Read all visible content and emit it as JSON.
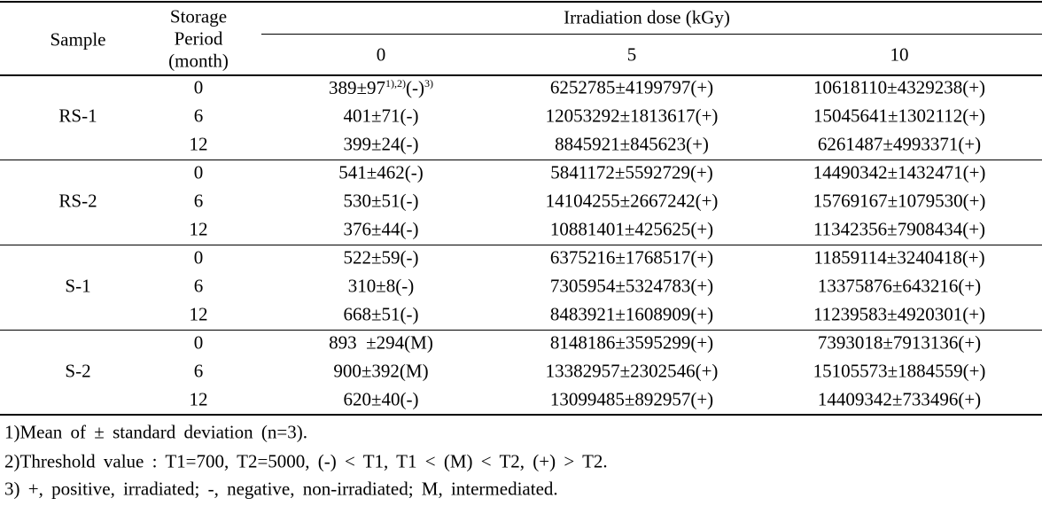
{
  "table": {
    "header": {
      "sample": "Sample",
      "period": [
        "Storage",
        "Period",
        "(month)"
      ],
      "dose": "Irradiation dose (kGy)",
      "doses": [
        "0",
        "5",
        "10"
      ]
    },
    "groups": [
      {
        "sample": "RS-1",
        "rows": [
          {
            "period": "0",
            "cells": [
              {
                "parts": [
                  "389±97",
                  "1),2)",
                  "(-)",
                  "3)"
                ]
              },
              "6252785±4199797(+)",
              "10618110±4329238(+)"
            ]
          },
          {
            "period": "6",
            "cells": [
              "401±71(-)",
              "12053292±1813617(+)",
              "15045641±1302112(+)"
            ]
          },
          {
            "period": "12",
            "cells": [
              "399±24(-)",
              "8845921±845623(+)",
              "6261487±4993371(+)"
            ]
          }
        ]
      },
      {
        "sample": "RS-2",
        "rows": [
          {
            "period": "0",
            "cells": [
              "541±462(-)",
              "5841172±5592729(+)",
              "14490342±1432471(+)"
            ]
          },
          {
            "period": "6",
            "cells": [
              "530±51(-)",
              "14104255±2667242(+)",
              "15769167±1079530(+)"
            ]
          },
          {
            "period": "12",
            "cells": [
              "376±44(-)",
              "10881401±425625(+)",
              "11342356±7908434(+)"
            ]
          }
        ]
      },
      {
        "sample": "S-1",
        "rows": [
          {
            "period": "0",
            "cells": [
              "522±59(-)",
              "6375216±1768517(+)",
              "11859114±3240418(+)"
            ]
          },
          {
            "period": "6",
            "cells": [
              "310±8(-)",
              "7305954±5324783(+)",
              "13375876±643216(+)"
            ]
          },
          {
            "period": "12",
            "cells": [
              "668±51(-)",
              "8483921±1608909(+)",
              "11239583±4920301(+)"
            ]
          }
        ]
      },
      {
        "sample": "S-2",
        "rows": [
          {
            "period": "0",
            "cells": [
              "893  ±294(M)",
              "8148186±3595299(+)",
              "7393018±7913136(+)"
            ]
          },
          {
            "period": "6",
            "cells": [
              "900±392(M)",
              "13382957±2302546(+)",
              "15105573±1884559(+)"
            ]
          },
          {
            "period": "12",
            "cells": [
              "620±40(-)",
              "13099485±892957(+)",
              "14409342±733496(+)"
            ]
          }
        ]
      }
    ]
  },
  "footnotes": [
    "1)Mean of ± standard deviation (n=3).",
    "2)Threshold value : T1=700, T2=5000, (-) < T1, T1 < (M) < T2, (+) > T2.",
    "3) +, positive, irradiated; -, negative, non-irradiated; M, intermediated."
  ]
}
